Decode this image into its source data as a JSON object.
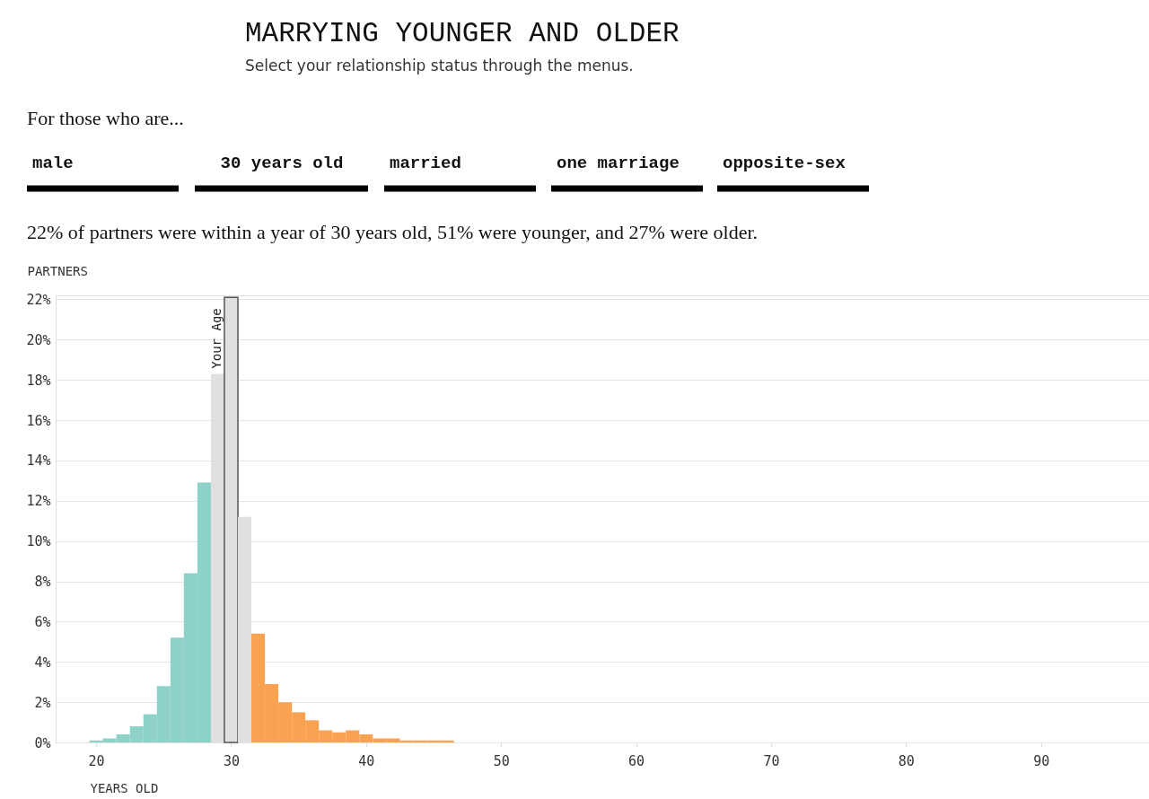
{
  "chart_data": {
    "type": "bar",
    "title": "MARRYING YOUNGER AND OLDER",
    "subtitle": "Select your relationship status through the menus.",
    "xlabel": "YEARS OLD",
    "ylabel": "PARTNERS",
    "x": [
      20,
      21,
      22,
      23,
      24,
      25,
      26,
      27,
      28,
      29,
      30,
      31,
      32,
      33,
      34,
      35,
      36,
      37,
      38,
      39,
      40,
      41,
      42,
      43,
      44,
      45,
      46
    ],
    "values": [
      0.1,
      0.2,
      0.4,
      0.8,
      1.4,
      2.8,
      5.2,
      8.4,
      12.9,
      18.3,
      22.1,
      11.2,
      5.4,
      2.9,
      2.0,
      1.5,
      1.1,
      0.6,
      0.5,
      0.6,
      0.4,
      0.2,
      0.2,
      0.1,
      0.1,
      0.1,
      0.1
    ],
    "colors": [
      "#8dd1c8",
      "#8dd1c8",
      "#8dd1c8",
      "#8dd1c8",
      "#8dd1c8",
      "#8dd1c8",
      "#8dd1c8",
      "#8dd1c8",
      "#8dd1c8",
      "#e0e0e0",
      "#e0e0e0",
      "#e0e0e0",
      "#f9a252",
      "#f9a252",
      "#f9a252",
      "#f9a252",
      "#f9a252",
      "#f9a252",
      "#f9a252",
      "#f9a252",
      "#f9a252",
      "#f9a252",
      "#f9a252",
      "#f9a252",
      "#f9a252",
      "#f9a252",
      "#f9a252"
    ],
    "xlim": [
      17,
      98
    ],
    "xticks": [
      20,
      30,
      40,
      50,
      60,
      70,
      80,
      90
    ],
    "ylim": [
      0,
      22.2
    ],
    "yticks": [
      {
        "value": 0,
        "label": "0%"
      },
      {
        "value": 2,
        "label": "2%"
      },
      {
        "value": 4,
        "label": "4%"
      },
      {
        "value": 6,
        "label": "6%"
      },
      {
        "value": 8,
        "label": "8%"
      },
      {
        "value": 10,
        "label": "10%"
      },
      {
        "value": 12,
        "label": "12%"
      },
      {
        "value": 14,
        "label": "14%"
      },
      {
        "value": 16,
        "label": "16%"
      },
      {
        "value": 18,
        "label": "18%"
      },
      {
        "value": 20,
        "label": "20%"
      },
      {
        "value": 22,
        "label": "22%"
      }
    ],
    "grid": "y",
    "annotations": [
      "For those who are...",
      "male",
      "30 years old",
      "married",
      "one marriage",
      "opposite-sex",
      "22% of partners were within a year of 30 years old, 51% were younger, and 27% were older.",
      {
        "text": "Your Age",
        "x": 30,
        "y": 22.1
      }
    ]
  }
}
